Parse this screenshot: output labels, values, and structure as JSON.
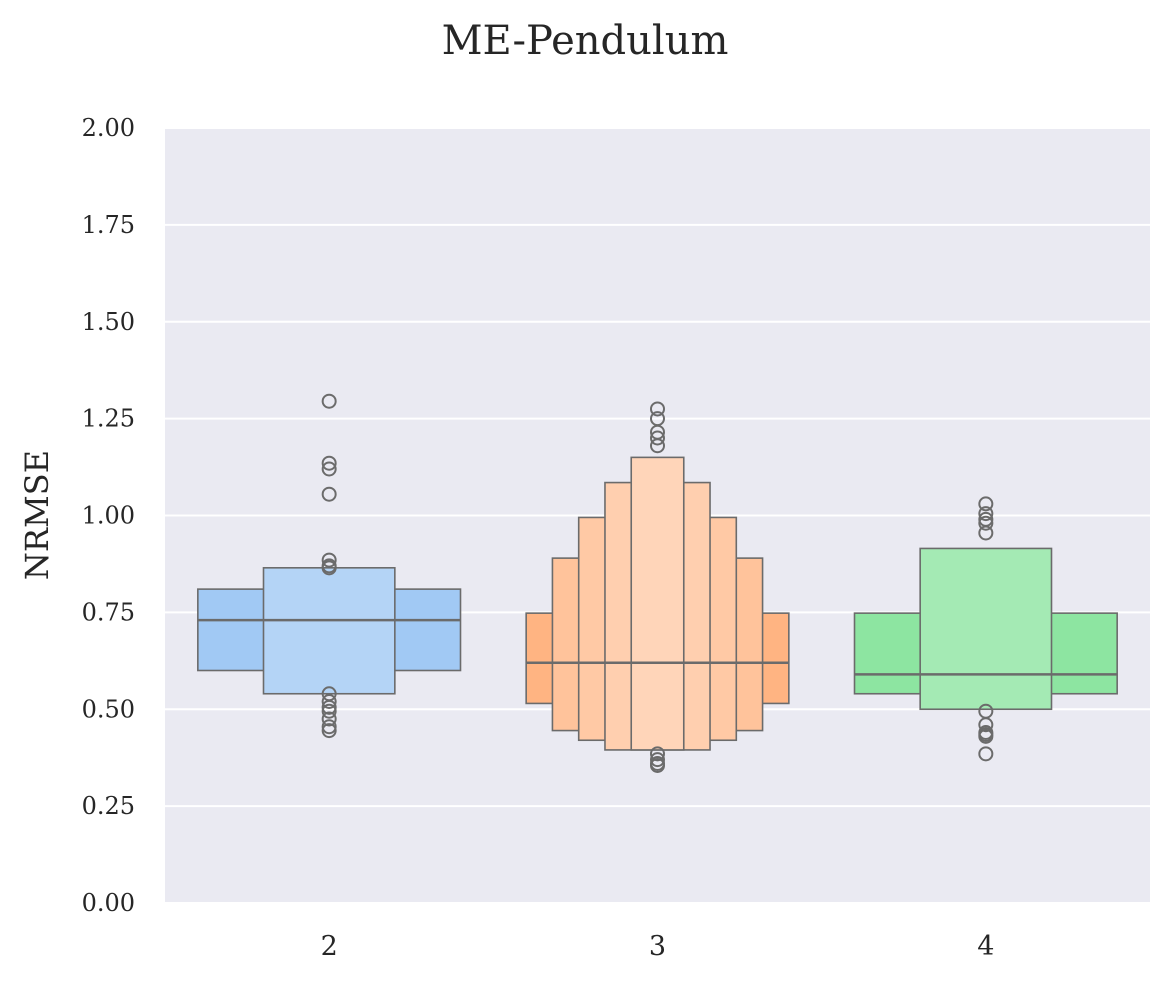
{
  "chart_data": {
    "type": "boxen",
    "title": "ME-Pendulum",
    "xlabel": "",
    "ylabel": "NRMSE",
    "ylim": [
      0,
      2
    ],
    "yticks": [
      "0.00",
      "0.25",
      "0.50",
      "0.75",
      "1.00",
      "1.25",
      "1.50",
      "1.75",
      "2.00"
    ],
    "grid": true,
    "categories": [
      "2",
      "3",
      "4"
    ],
    "colors": {
      "background": "#eaeaf2",
      "grid": "#ffffff",
      "edge": "#6b6b6b",
      "series": [
        "#a1c9f4",
        "#ffb482",
        "#8de5a1"
      ]
    },
    "groups": [
      {
        "category": "2",
        "median": 0.73,
        "levels": [
          {
            "low": 0.6,
            "high": 0.81
          },
          {
            "low": 0.54,
            "high": 0.865
          }
        ],
        "outliers": [
          1.295,
          1.135,
          1.12,
          1.055,
          0.885,
          0.87,
          0.865,
          0.54,
          0.52,
          0.505,
          0.495,
          0.475,
          0.455,
          0.445
        ]
      },
      {
        "category": "3",
        "median": 0.62,
        "levels": [
          {
            "low": 0.515,
            "high": 0.748
          },
          {
            "low": 0.445,
            "high": 0.89
          },
          {
            "low": 0.42,
            "high": 0.995
          },
          {
            "low": 0.395,
            "high": 1.085
          },
          {
            "low": 0.395,
            "high": 1.15
          }
        ],
        "outliers": [
          1.275,
          1.25,
          1.215,
          1.2,
          1.18,
          0.385,
          0.37,
          0.36,
          0.355
        ]
      },
      {
        "category": "4",
        "median": 0.59,
        "levels": [
          {
            "low": 0.54,
            "high": 0.748
          },
          {
            "low": 0.5,
            "high": 0.915
          }
        ],
        "outliers": [
          1.03,
          1.005,
          0.99,
          0.98,
          0.955,
          0.495,
          0.46,
          0.44,
          0.435,
          0.43,
          0.385
        ]
      }
    ]
  }
}
